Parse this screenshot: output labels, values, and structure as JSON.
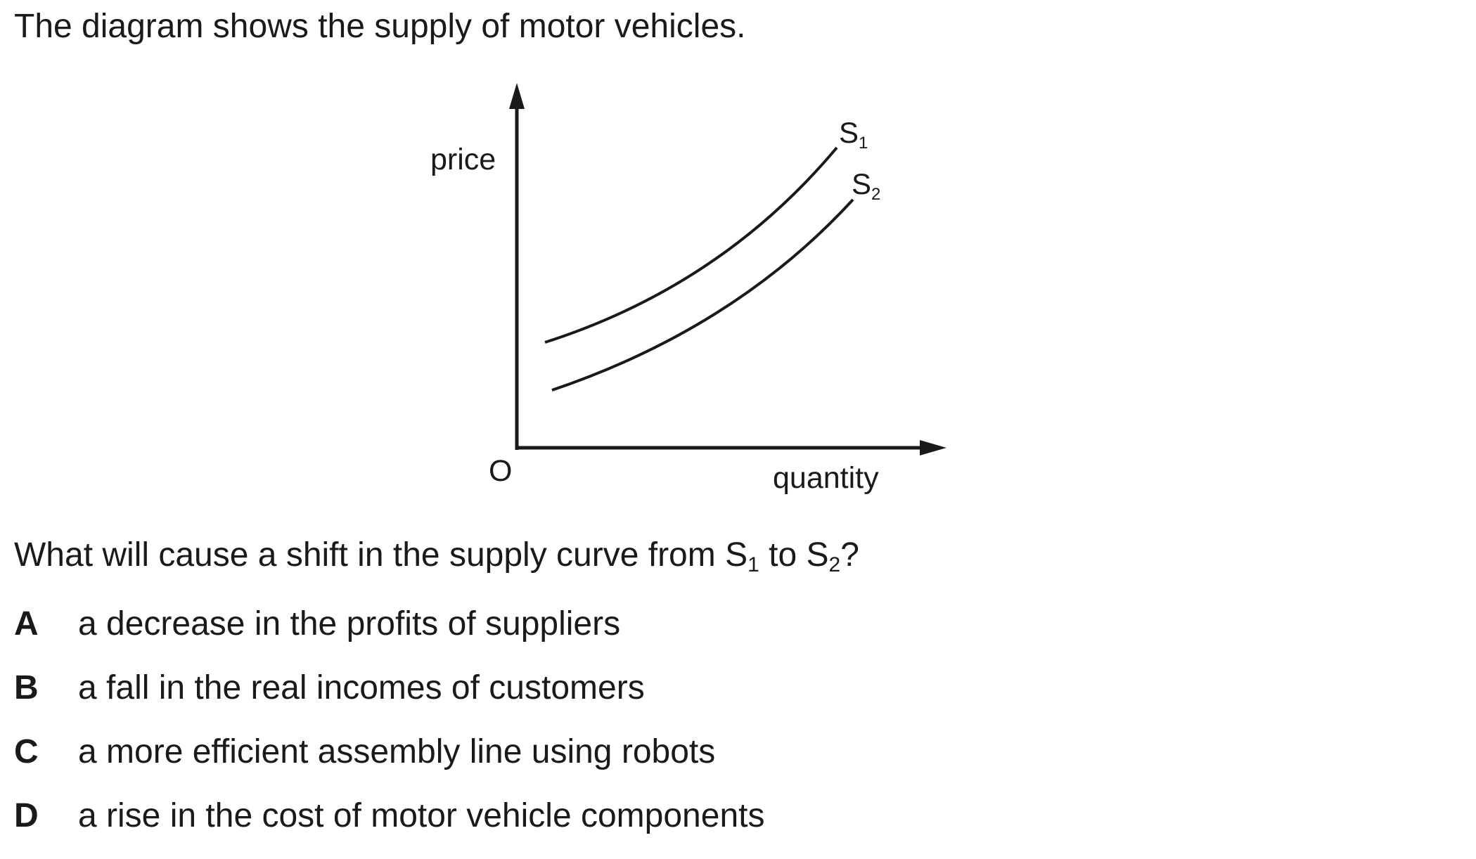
{
  "intro": "The diagram shows the supply of motor vehicles.",
  "diagram": {
    "y_axis_label": "price",
    "x_axis_label": "quantity",
    "origin_label": "O",
    "curves": [
      {
        "base": "S",
        "sub": "1"
      },
      {
        "base": "S",
        "sub": "2"
      }
    ]
  },
  "question": {
    "part1": "What will cause a shift in the supply curve from S",
    "sub1": "1",
    "part2": " to S",
    "sub2": "2",
    "part3": "?"
  },
  "options": [
    {
      "letter": "A",
      "text": "a decrease in the profits of suppliers"
    },
    {
      "letter": "B",
      "text": "a fall in the real incomes of customers"
    },
    {
      "letter": "C",
      "text": "a more efficient assembly line using robots"
    },
    {
      "letter": "D",
      "text": "a rise in the cost of motor vehicle components"
    }
  ],
  "colors": {
    "ink": "#1a1a1a",
    "background": "#ffffff"
  }
}
